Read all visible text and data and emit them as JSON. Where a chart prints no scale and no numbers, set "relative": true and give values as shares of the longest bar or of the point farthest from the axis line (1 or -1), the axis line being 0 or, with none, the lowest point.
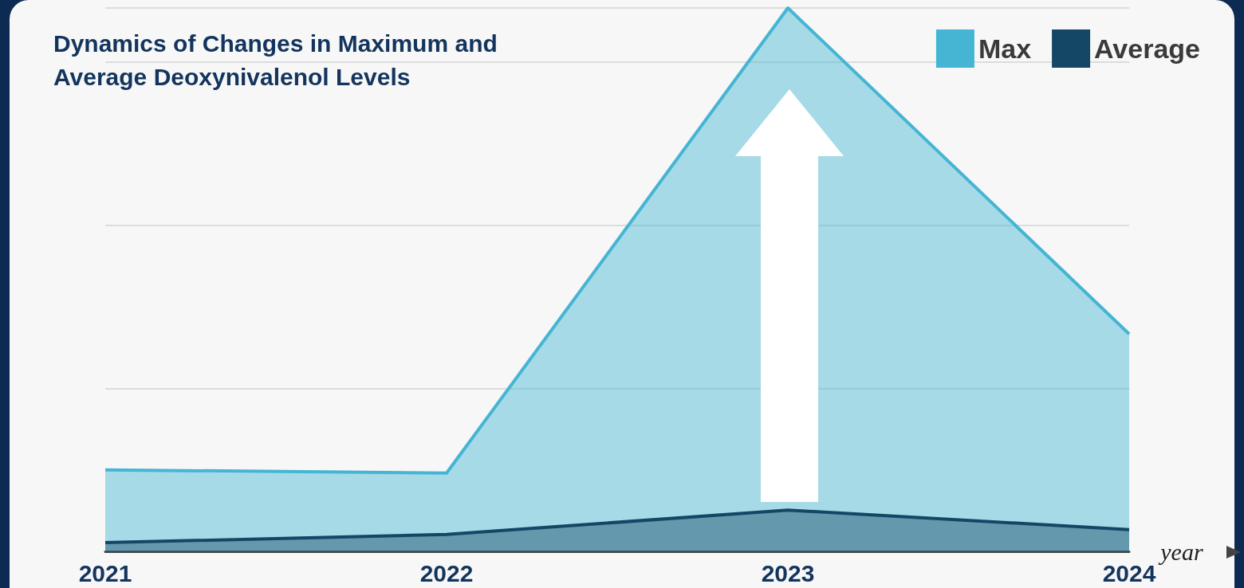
{
  "chart_data": {
    "type": "area",
    "title": "Dynamics of Changes in Maximum and Average Deoxynivalenol Levels",
    "xlabel": "year",
    "categories": [
      "2021",
      "2022",
      "2023",
      "2024"
    ],
    "relative": true,
    "grid": "y",
    "legend": "top right",
    "marker": "none",
    "series": [
      {
        "name": "Max",
        "color": "#45b5d3",
        "values": [
          0.15,
          0.144,
          1,
          0.4
        ]
      },
      {
        "name": "Average",
        "color": "#134765",
        "values": [
          0.016,
          0.031,
          0.076,
          0.04
        ]
      }
    ]
  }
}
